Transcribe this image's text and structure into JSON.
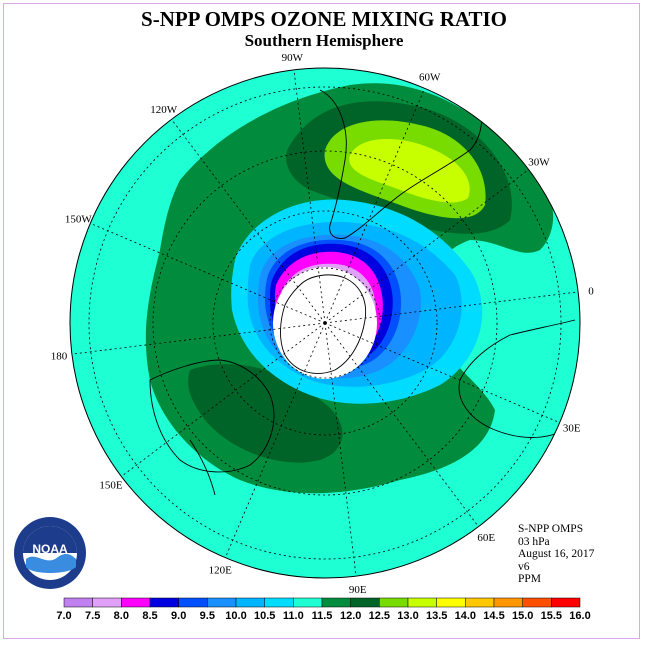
{
  "header": {
    "title": "S-NPP OMPS OZONE MIXING RATIO",
    "subtitle": "Southern Hemisphere"
  },
  "map": {
    "projection": "polar-stereographic-south",
    "longitude_labels": [
      "90W",
      "60W",
      "30W",
      "0",
      "30E",
      "60E",
      "90E",
      "120E",
      "150E",
      "180",
      "150W",
      "120W"
    ],
    "background_color": "#1effd4"
  },
  "info": {
    "instrument": "S-NPP OMPS",
    "level": "03 hPa",
    "date": "August 16, 2017",
    "version": "v6",
    "units": "PPM"
  },
  "colorbar": {
    "ticks": [
      "7.0",
      "7.5",
      "8.0",
      "8.5",
      "9.0",
      "9.5",
      "10.0",
      "10.5",
      "11.0",
      "11.5",
      "12.0",
      "12.5",
      "13.0",
      "13.5",
      "14.0",
      "14.5",
      "15.0",
      "15.5",
      "16.0"
    ],
    "colors": [
      "#c080f0",
      "#e0a0f8",
      "#ff00ff",
      "#0000e0",
      "#0050ff",
      "#1890ff",
      "#00b4ff",
      "#00dcff",
      "#1effd4",
      "#008c3c",
      "#006428",
      "#78dc00",
      "#c8ff00",
      "#ffff00",
      "#ffc800",
      "#ff9600",
      "#ff5000",
      "#ff0000",
      "#7a4a2a"
    ]
  },
  "logo": {
    "text": "NOAA",
    "icon": "noaa-seal-icon"
  }
}
